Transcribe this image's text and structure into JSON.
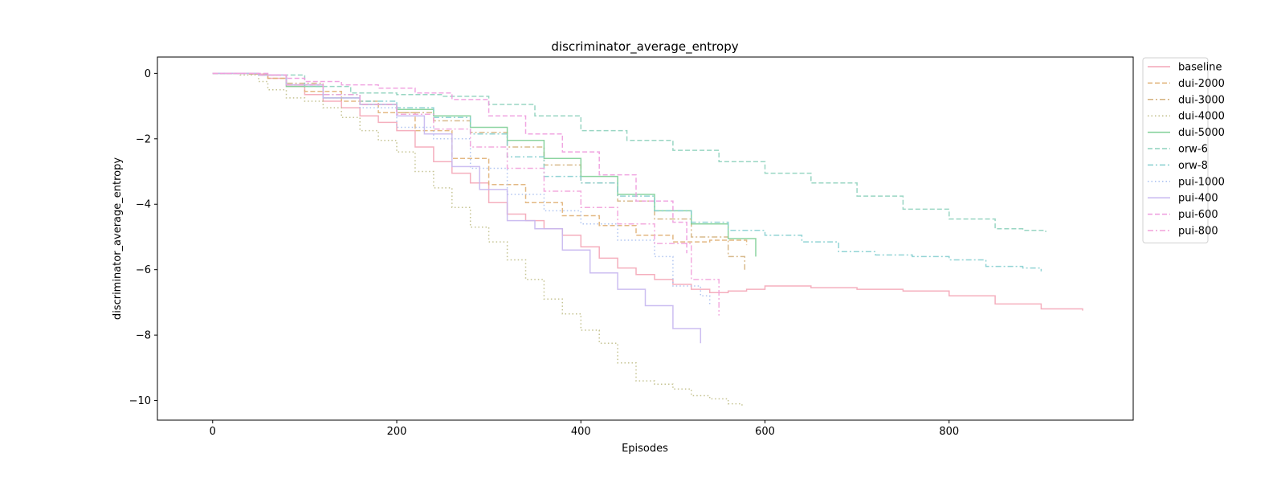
{
  "chart_data": {
    "type": "line",
    "title": "discriminator_average_entropy",
    "xlabel": "Episodes",
    "ylabel": "discriminator_average_entropy",
    "xlim": [
      -60,
      1000
    ],
    "ylim": [
      -10.6,
      0.5
    ],
    "xticks": [
      0,
      200,
      400,
      600,
      800
    ],
    "yticks": [
      0,
      -2,
      -4,
      -6,
      -8,
      -10
    ],
    "xtick_labels": [
      "0",
      "200",
      "400",
      "600",
      "800"
    ],
    "ytick_labels": [
      "0",
      "−2",
      "−4",
      "−6",
      "−8",
      "−10"
    ],
    "grid": false,
    "legend_position": "outside-right-top",
    "series": [
      {
        "name": "baseline",
        "color": "#f4a6b7",
        "dash": "solid",
        "x": [
          0,
          40,
          60,
          80,
          100,
          120,
          140,
          160,
          180,
          200,
          220,
          240,
          260,
          280,
          300,
          320,
          340,
          360,
          380,
          400,
          420,
          440,
          460,
          480,
          500,
          520,
          540,
          560,
          580,
          600,
          650,
          700,
          750,
          800,
          850,
          900,
          945
        ],
        "y": [
          0,
          -0.02,
          -0.15,
          -0.4,
          -0.65,
          -0.85,
          -1.05,
          -1.3,
          -1.5,
          -1.75,
          -2.25,
          -2.7,
          -3.05,
          -3.35,
          -3.95,
          -4.3,
          -4.5,
          -4.75,
          -4.95,
          -5.3,
          -5.65,
          -5.95,
          -6.15,
          -6.3,
          -6.45,
          -6.6,
          -6.7,
          -6.65,
          -6.6,
          -6.5,
          -6.55,
          -6.6,
          -6.65,
          -6.8,
          -7.05,
          -7.2,
          -7.25
        ]
      },
      {
        "name": "dui-2000",
        "color": "#e0b075",
        "dash": "dashed",
        "x": [
          0,
          40,
          60,
          80,
          100,
          140,
          180,
          220,
          260,
          300,
          340,
          380,
          420,
          460,
          500,
          540,
          580
        ],
        "y": [
          0,
          -0.02,
          -0.15,
          -0.35,
          -0.55,
          -0.85,
          -1.2,
          -1.75,
          -2.6,
          -3.4,
          -3.95,
          -4.35,
          -4.65,
          -4.95,
          -5.15,
          -5.1,
          -5.25
        ]
      },
      {
        "name": "dui-3000",
        "color": "#d4b27f",
        "dash": "dashdot",
        "x": [
          0,
          50,
          80,
          120,
          160,
          200,
          240,
          280,
          320,
          360,
          400,
          440,
          480,
          520,
          560,
          578
        ],
        "y": [
          0,
          -0.05,
          -0.3,
          -0.65,
          -0.95,
          -1.2,
          -1.45,
          -1.8,
          -2.25,
          -2.8,
          -3.35,
          -3.9,
          -4.45,
          -5.0,
          -5.6,
          -6.0
        ]
      },
      {
        "name": "dui-4000",
        "color": "#bfbd86",
        "dash": "dotted",
        "x": [
          0,
          30,
          50,
          60,
          80,
          100,
          120,
          140,
          160,
          180,
          200,
          220,
          240,
          260,
          280,
          300,
          320,
          340,
          360,
          380,
          400,
          420,
          440,
          460,
          480,
          500,
          520,
          540,
          560,
          575
        ],
        "y": [
          0,
          -0.05,
          -0.25,
          -0.5,
          -0.75,
          -0.85,
          -1.05,
          -1.35,
          -1.75,
          -2.05,
          -2.4,
          -3.0,
          -3.5,
          -4.1,
          -4.7,
          -5.15,
          -5.7,
          -6.3,
          -6.9,
          -7.35,
          -7.85,
          -8.25,
          -8.85,
          -9.4,
          -9.5,
          -9.65,
          -9.85,
          -9.95,
          -10.1,
          -10.18
        ]
      },
      {
        "name": "dui-5000",
        "color": "#7fcf96",
        "dash": "solid",
        "x": [
          0,
          50,
          80,
          120,
          160,
          200,
          240,
          280,
          320,
          360,
          400,
          440,
          480,
          520,
          560,
          590
        ],
        "y": [
          0,
          -0.05,
          -0.4,
          -0.75,
          -0.95,
          -1.1,
          -1.3,
          -1.65,
          -2.05,
          -2.6,
          -3.15,
          -3.7,
          -4.2,
          -4.6,
          -5.05,
          -5.6
        ]
      },
      {
        "name": "orw-6",
        "color": "#8ed2bd",
        "dash": "dashed",
        "x": [
          0,
          50,
          100,
          150,
          200,
          250,
          300,
          350,
          400,
          450,
          500,
          550,
          600,
          650,
          700,
          750,
          800,
          850,
          880,
          905
        ],
        "y": [
          0,
          -0.05,
          -0.4,
          -0.6,
          -0.65,
          -0.7,
          -0.95,
          -1.3,
          -1.75,
          -2.05,
          -2.35,
          -2.7,
          -3.05,
          -3.35,
          -3.75,
          -4.15,
          -4.45,
          -4.75,
          -4.8,
          -4.85
        ]
      },
      {
        "name": "orw-8",
        "color": "#86cfd0",
        "dash": "dashdot",
        "x": [
          0,
          50,
          80,
          120,
          160,
          200,
          240,
          280,
          320,
          360,
          400,
          440,
          480,
          520,
          560,
          600,
          640,
          680,
          720,
          760,
          800,
          840,
          880,
          900
        ],
        "y": [
          0,
          -0.05,
          -0.35,
          -0.65,
          -0.85,
          -1.05,
          -1.35,
          -1.85,
          -2.55,
          -3.15,
          -3.35,
          -3.75,
          -4.2,
          -4.55,
          -4.8,
          -4.95,
          -5.15,
          -5.45,
          -5.55,
          -5.6,
          -5.7,
          -5.9,
          -5.95,
          -6.05
        ]
      },
      {
        "name": "pui-1000",
        "color": "#a7bff0",
        "dash": "dotted",
        "x": [
          0,
          50,
          80,
          120,
          160,
          200,
          240,
          280,
          320,
          360,
          400,
          440,
          480,
          500,
          530,
          540
        ],
        "y": [
          0,
          -0.05,
          -0.35,
          -0.75,
          -1.05,
          -1.65,
          -2.0,
          -2.9,
          -3.7,
          -4.2,
          -4.6,
          -5.1,
          -5.6,
          -6.5,
          -6.8,
          -7.1
        ]
      },
      {
        "name": "pui-400",
        "color": "#c7b7f0",
        "dash": "solid",
        "x": [
          0,
          50,
          80,
          120,
          160,
          200,
          230,
          260,
          290,
          320,
          350,
          380,
          410,
          440,
          470,
          500,
          530
        ],
        "y": [
          0,
          -0.05,
          -0.35,
          -0.75,
          -0.95,
          -1.3,
          -1.85,
          -2.85,
          -3.55,
          -4.5,
          -4.75,
          -5.4,
          -6.1,
          -6.6,
          -7.1,
          -7.8,
          -8.25
        ]
      },
      {
        "name": "pui-600",
        "color": "#ee9bde",
        "dash": "dashed",
        "x": [
          0,
          60,
          80,
          100,
          140,
          180,
          220,
          260,
          300,
          340,
          380,
          420,
          460,
          500,
          515
        ],
        "y": [
          0,
          -0.05,
          -0.15,
          -0.25,
          -0.35,
          -0.45,
          -0.6,
          -0.8,
          -1.3,
          -1.85,
          -2.4,
          -3.1,
          -3.9,
          -4.55,
          -5.5
        ]
      },
      {
        "name": "pui-800",
        "color": "#f2a2da",
        "dash": "dashdot",
        "x": [
          0,
          50,
          80,
          120,
          160,
          200,
          240,
          280,
          320,
          360,
          400,
          440,
          480,
          520,
          550
        ],
        "y": [
          0,
          -0.05,
          -0.35,
          -0.65,
          -0.95,
          -1.25,
          -1.7,
          -2.25,
          -2.9,
          -3.6,
          -4.1,
          -4.6,
          -5.2,
          -6.3,
          -7.4
        ]
      }
    ]
  }
}
